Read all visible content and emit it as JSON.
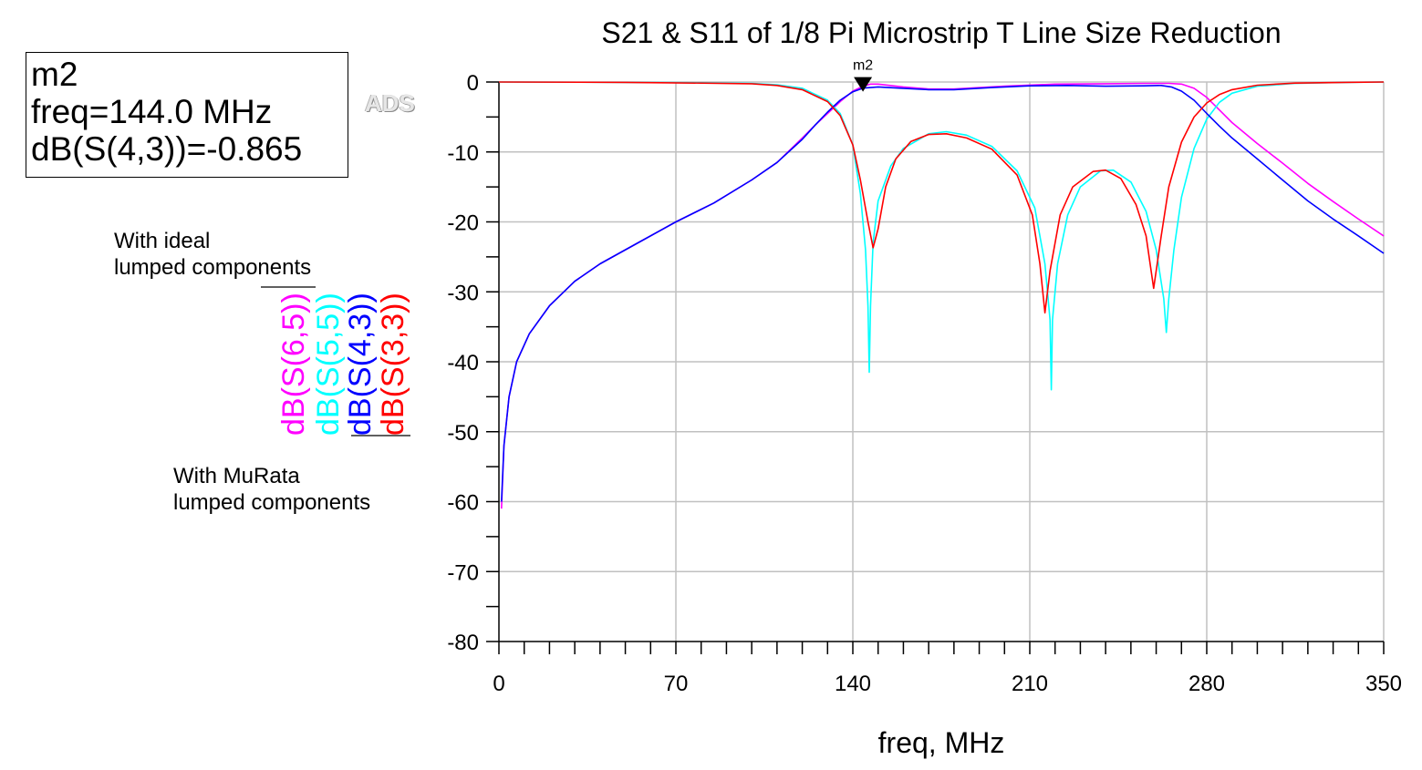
{
  "marker_box": {
    "name": "m2",
    "freq": "freq=144.0 MHz",
    "value": "dB(S(4,3))=-0.865"
  },
  "logo": "ADS",
  "notes": {
    "ideal_line1": "With ideal",
    "ideal_line2": "lumped components",
    "murata_line1": "With MuRata",
    "murata_line2": "lumped components"
  },
  "chart_data": {
    "type": "line",
    "title": "S21 & S11 of 1/8 Pi Microstrip T Line Size Reduction",
    "xlabel": "freq, MHz",
    "ylabel": "",
    "xlim": [
      0,
      350
    ],
    "ylim": [
      -80,
      0
    ],
    "xticks": [
      "0",
      "70",
      "140",
      "210",
      "280",
      "350"
    ],
    "yticks": [
      "0",
      "-10",
      "-20",
      "-30",
      "-40",
      "-50",
      "-60",
      "-70",
      "-80"
    ],
    "grid": true,
    "legend_position": "left, rotated vertical",
    "marker": {
      "label": "m2",
      "x": 144.0,
      "y": -0.865
    },
    "series": [
      {
        "name": "dB(S(6,5))",
        "color": "#ff00ff",
        "points": [
          [
            1,
            -61
          ],
          [
            2,
            -52
          ],
          [
            4,
            -45
          ],
          [
            7,
            -40
          ],
          [
            12,
            -36
          ],
          [
            20,
            -32
          ],
          [
            30,
            -28.5
          ],
          [
            40,
            -26
          ],
          [
            55,
            -23
          ],
          [
            70,
            -20
          ],
          [
            85,
            -17.3
          ],
          [
            100,
            -14
          ],
          [
            110,
            -11.5
          ],
          [
            120,
            -8
          ],
          [
            125,
            -6.2
          ],
          [
            130,
            -4.5
          ],
          [
            135,
            -2.8
          ],
          [
            140,
            -1.3
          ],
          [
            144,
            -0.6
          ],
          [
            147,
            -0.3
          ],
          [
            150,
            -0.3
          ],
          [
            160,
            -0.7
          ],
          [
            170,
            -1.0
          ],
          [
            180,
            -1.0
          ],
          [
            200,
            -0.6
          ],
          [
            220,
            -0.3
          ],
          [
            240,
            -0.25
          ],
          [
            255,
            -0.2
          ],
          [
            265,
            -0.2
          ],
          [
            270,
            -0.3
          ],
          [
            275,
            -0.9
          ],
          [
            280,
            -2.2
          ],
          [
            285,
            -4.0
          ],
          [
            290,
            -5.8
          ],
          [
            300,
            -8.8
          ],
          [
            310,
            -11.6
          ],
          [
            320,
            -14.5
          ],
          [
            330,
            -17.1
          ],
          [
            340,
            -19.6
          ],
          [
            350,
            -22
          ]
        ]
      },
      {
        "name": "dB(S(5,5))",
        "color": "#00ffff",
        "points": [
          [
            0,
            0
          ],
          [
            50,
            -0.05
          ],
          [
            80,
            -0.1
          ],
          [
            100,
            -0.2
          ],
          [
            110,
            -0.4
          ],
          [
            120,
            -0.9
          ],
          [
            130,
            -2.6
          ],
          [
            135,
            -4.5
          ],
          [
            140,
            -9
          ],
          [
            143,
            -16
          ],
          [
            145,
            -24
          ],
          [
            146,
            -32
          ],
          [
            146.5,
            -41.5
          ],
          [
            147,
            -32
          ],
          [
            148,
            -23
          ],
          [
            150,
            -17
          ],
          [
            155,
            -12
          ],
          [
            160,
            -9.5
          ],
          [
            170,
            -7.4
          ],
          [
            177,
            -7.1
          ],
          [
            185,
            -7.6
          ],
          [
            195,
            -9.2
          ],
          [
            205,
            -12.7
          ],
          [
            212,
            -18
          ],
          [
            216,
            -26
          ],
          [
            218,
            -34
          ],
          [
            218.5,
            -44
          ],
          [
            219,
            -34
          ],
          [
            221,
            -26
          ],
          [
            225,
            -19
          ],
          [
            230,
            -15
          ],
          [
            238,
            -12.7
          ],
          [
            243,
            -12.6
          ],
          [
            250,
            -14.3
          ],
          [
            256,
            -18.5
          ],
          [
            260,
            -24
          ],
          [
            263,
            -31
          ],
          [
            264,
            -35.8
          ],
          [
            265,
            -31
          ],
          [
            267,
            -24
          ],
          [
            270,
            -16.5
          ],
          [
            275,
            -9.5
          ],
          [
            280,
            -5.3
          ],
          [
            285,
            -2.9
          ],
          [
            290,
            -1.6
          ],
          [
            300,
            -0.6
          ],
          [
            315,
            -0.2
          ],
          [
            335,
            -0.05
          ],
          [
            350,
            0
          ]
        ]
      },
      {
        "name": "dB(S(4,3))",
        "color": "#0000ff",
        "points": [
          [
            1,
            -60
          ],
          [
            2,
            -52
          ],
          [
            4,
            -45
          ],
          [
            7,
            -40
          ],
          [
            12,
            -36
          ],
          [
            20,
            -32
          ],
          [
            30,
            -28.5
          ],
          [
            40,
            -26
          ],
          [
            55,
            -23
          ],
          [
            70,
            -20
          ],
          [
            85,
            -17.3
          ],
          [
            100,
            -14
          ],
          [
            110,
            -11.5
          ],
          [
            120,
            -8.2
          ],
          [
            125,
            -6.2
          ],
          [
            130,
            -4.3
          ],
          [
            135,
            -2.6
          ],
          [
            140,
            -1.4
          ],
          [
            144,
            -0.87
          ],
          [
            150,
            -0.7
          ],
          [
            160,
            -0.9
          ],
          [
            170,
            -1.1
          ],
          [
            180,
            -1.1
          ],
          [
            195,
            -0.8
          ],
          [
            210,
            -0.55
          ],
          [
            225,
            -0.5
          ],
          [
            240,
            -0.6
          ],
          [
            255,
            -0.55
          ],
          [
            262,
            -0.5
          ],
          [
            266,
            -0.7
          ],
          [
            270,
            -1.3
          ],
          [
            275,
            -2.6
          ],
          [
            280,
            -4.5
          ],
          [
            285,
            -6.3
          ],
          [
            290,
            -8
          ],
          [
            300,
            -11
          ],
          [
            310,
            -14
          ],
          [
            320,
            -17
          ],
          [
            330,
            -19.6
          ],
          [
            340,
            -22
          ],
          [
            350,
            -24.5
          ]
        ]
      },
      {
        "name": "dB(S(3,3))",
        "color": "#ff0000",
        "points": [
          [
            0,
            0
          ],
          [
            50,
            -0.05
          ],
          [
            80,
            -0.15
          ],
          [
            100,
            -0.25
          ],
          [
            110,
            -0.5
          ],
          [
            120,
            -1.1
          ],
          [
            130,
            -2.8
          ],
          [
            135,
            -4.8
          ],
          [
            140,
            -9
          ],
          [
            143,
            -14
          ],
          [
            146,
            -20
          ],
          [
            148,
            -23.7
          ],
          [
            150,
            -21
          ],
          [
            153,
            -15
          ],
          [
            157,
            -11
          ],
          [
            163,
            -8.5
          ],
          [
            170,
            -7.5
          ],
          [
            177,
            -7.4
          ],
          [
            185,
            -8
          ],
          [
            195,
            -9.6
          ],
          [
            205,
            -13.3
          ],
          [
            211,
            -19
          ],
          [
            214,
            -26
          ],
          [
            216,
            -33
          ],
          [
            218,
            -27
          ],
          [
            222,
            -19
          ],
          [
            227,
            -15
          ],
          [
            235,
            -12.8
          ],
          [
            240,
            -12.6
          ],
          [
            246,
            -13.8
          ],
          [
            252,
            -17.5
          ],
          [
            256,
            -22
          ],
          [
            259,
            -29.5
          ],
          [
            262,
            -22
          ],
          [
            265,
            -15
          ],
          [
            270,
            -8.6
          ],
          [
            275,
            -5
          ],
          [
            280,
            -3
          ],
          [
            285,
            -1.8
          ],
          [
            290,
            -1.1
          ],
          [
            300,
            -0.45
          ],
          [
            315,
            -0.15
          ],
          [
            335,
            -0.05
          ],
          [
            350,
            0
          ]
        ]
      }
    ]
  }
}
